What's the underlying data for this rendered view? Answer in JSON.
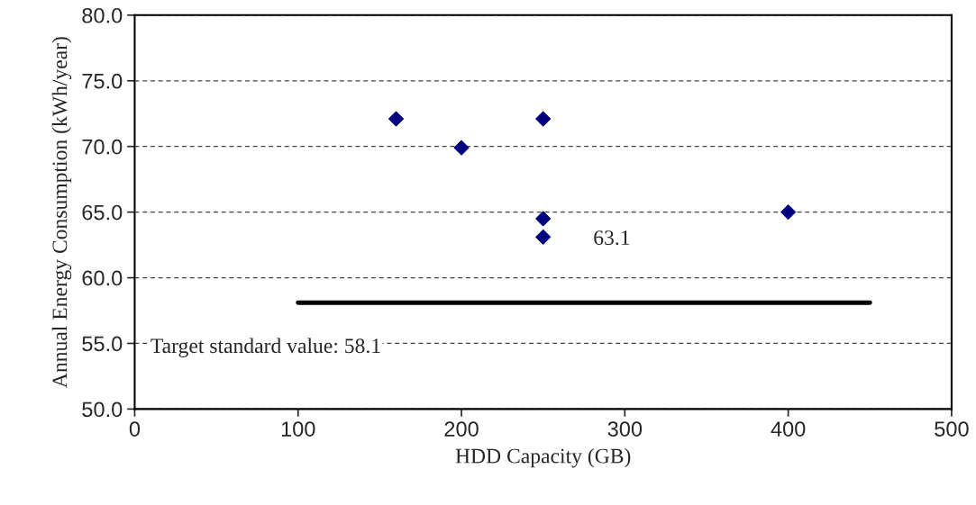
{
  "chart_data": {
    "type": "scatter",
    "xlabel": "HDD Capacity (GB)",
    "ylabel": "Annual Energy Consumption (kWh/year)",
    "xlim": [
      0,
      500
    ],
    "xticks": [
      0,
      100,
      200,
      300,
      400,
      500
    ],
    "ylim": [
      50,
      80
    ],
    "yticks": [
      {
        "value": 50,
        "label": "50.0"
      },
      {
        "value": 55,
        "label": "55.0"
      },
      {
        "value": 60,
        "label": "60.0"
      },
      {
        "value": 65,
        "label": "65.0"
      },
      {
        "value": 70,
        "label": "70.0"
      },
      {
        "value": 75,
        "label": "75.0"
      },
      {
        "value": 80,
        "label": "80.0"
      }
    ],
    "grid": "y",
    "marker": "diamond",
    "series": [
      {
        "color": "#000080",
        "x": [
          160,
          200,
          250,
          250,
          250,
          400
        ],
        "values": [
          72.1,
          69.9,
          72.1,
          64.5,
          63.1,
          65.0
        ]
      },
      {
        "type": "line",
        "color": "#000000",
        "x": [
          100,
          450
        ],
        "values": [
          58.1,
          58.1
        ],
        "marker": "none"
      }
    ],
    "annotations": [
      {
        "text": "63.1",
        "x": 250,
        "y": 63.1
      },
      {
        "text": "Target standard value: 58.1",
        "x": 100,
        "y": 58.1
      }
    ]
  }
}
